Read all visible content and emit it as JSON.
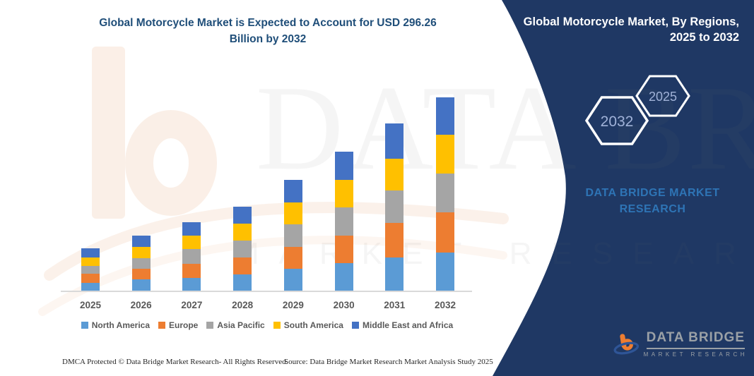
{
  "title_line1": "Global Motorcycle Market is Expected to Account for USD 296.26",
  "title_line2": "Billion by 2032",
  "panel": {
    "title_line1": "Global Motorcycle Market, By Regions,",
    "title_line2": "2025 to 2032",
    "hexagons": [
      "2032",
      "2025"
    ],
    "brand_text": "DATA BRIDGE MARKET RESEARCH",
    "bg_color": "#1F3864",
    "brand_text_color": "#2E74B5",
    "hexagon_label_color": "#A0B2D8"
  },
  "logo": {
    "name": "DATA BRIDGE",
    "sub": "MARKET RESEARCH",
    "b_color": "#ED7D31",
    "swoosh_color": "#2F5597"
  },
  "watermark": {
    "line1": "DATA BRIDGE",
    "line2": "MARKET RESEARCH"
  },
  "chart_data": {
    "type": "bar",
    "stacked": true,
    "title": "Global Motorcycle Market is Expected to Account for USD 296.26 Billion by 2032",
    "unit": "USD Billion",
    "categories": [
      "2025",
      "2026",
      "2027",
      "2028",
      "2029",
      "2030",
      "2031",
      "2032"
    ],
    "series": [
      {
        "name": "North America",
        "color": "#5B9BD5",
        "values": [
          13.2,
          17.9,
          20.8,
          25.9,
          34.0,
          42.7,
          52.0,
          59.3
        ]
      },
      {
        "name": "Europe",
        "color": "#ED7D31",
        "values": [
          13.4,
          16.9,
          21.5,
          25.9,
          34.0,
          42.7,
          52.0,
          61.0
        ]
      },
      {
        "name": "Asia Pacific",
        "color": "#A5A5A5",
        "values": [
          11.8,
          16.2,
          22.0,
          25.8,
          34.0,
          42.8,
          50.3,
          60.0
        ]
      },
      {
        "name": "South America",
        "color": "#FFC000",
        "values": [
          13.0,
          17.2,
          20.8,
          25.8,
          33.9,
          42.7,
          48.5,
          58.5
        ]
      },
      {
        "name": "Middle East and Africa",
        "color": "#4472C4",
        "values": [
          14.0,
          16.9,
          20.8,
          25.9,
          33.9,
          42.7,
          53.9,
          57.46
        ]
      }
    ],
    "totals": [
      65.4,
      85.1,
      105.9,
      129.3,
      169.8,
      213.6,
      256.7,
      296.26
    ],
    "ylim": [
      0,
      300
    ],
    "grid": false,
    "legend_position": "bottom",
    "xlabel": "",
    "ylabel": ""
  },
  "footer": {
    "left": "DMCA Protected © Data Bridge Market Research-  All Rights Reserved.",
    "right": "Source: Data Bridge Market Research  Market Analysis Study 2025"
  }
}
